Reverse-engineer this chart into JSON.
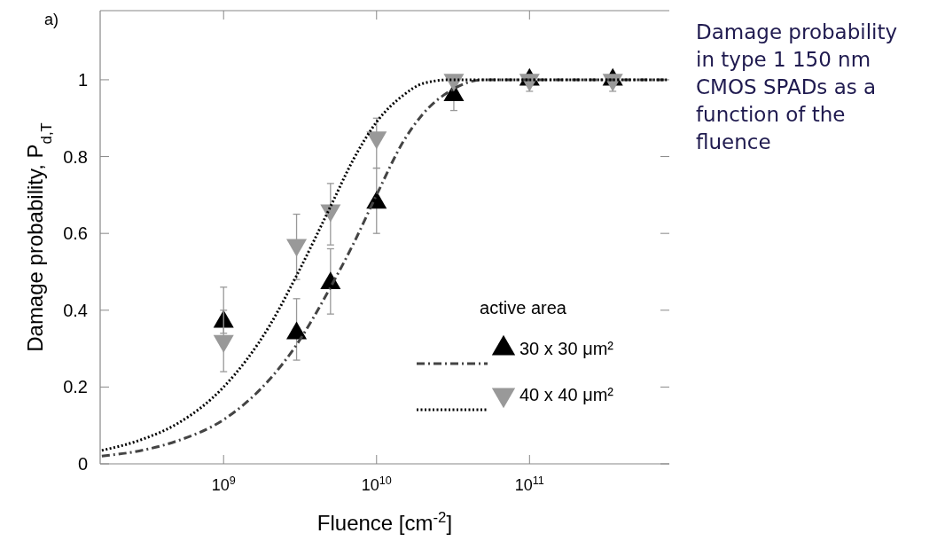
{
  "chart_data": {
    "type": "scatter",
    "title": "a)",
    "xlabel": "Fluence [cm$^{-2}$]",
    "ylabel": "Damage probability, P$_{d,T}$",
    "legend_title": "active area",
    "legend": "bottom right",
    "grid": false,
    "log": "x",
    "xlim": [
      156000000.0,
      820000000000.0
    ],
    "xticks": [
      {
        "value": 1000000000.0,
        "label": "10$^{9}$"
      },
      {
        "value": 10000000000.0,
        "label": "10$^{10}$"
      },
      {
        "value": 100000000000.0,
        "label": "10$^{11}$"
      }
    ],
    "ylim": [
      0,
      1.18
    ],
    "yticks": [
      0,
      0.2,
      0.4,
      0.6,
      0.8,
      1
    ],
    "series": [
      {
        "name": "30 x 30 μm²",
        "marker": "triangle",
        "color": "#000000",
        "x": [
          1000000000.0,
          3000000000.0,
          5000000000.0,
          10000000000.0,
          32000000000.0,
          100000000000.0,
          350000000000.0
        ],
        "values": [
          0.37,
          0.34,
          0.47,
          0.68,
          0.96,
          1.0,
          1.0
        ],
        "errors": [
          0.03,
          [
            0.27,
            0.43
          ],
          [
            0.39,
            0.56
          ],
          [
            0.6,
            0.77
          ],
          [
            0.92,
            1.0
          ],
          [
            0.97,
            1.0
          ],
          [
            0.97,
            1.0
          ]
        ]
      },
      {
        "name": "40 x 40 μm²",
        "marker": "triangle-down",
        "color": "#999999",
        "x": [
          1000000000.0,
          3000000000.0,
          5000000000.0,
          10000000000.0,
          32000000000.0,
          100000000000.0,
          350000000000.0
        ],
        "values": [
          0.32,
          0.57,
          0.66,
          0.85,
          1.0,
          1.0,
          1.0
        ],
        "errors": [
          [
            0.24,
            0.46
          ],
          [
            0.48,
            0.65
          ],
          [
            0.57,
            0.73
          ],
          [
            0.77,
            0.9
          ],
          null,
          null,
          null
        ]
      },
      {
        "type": "line",
        "line_style": "dashdot",
        "color": "#444444",
        "x": [
          160000000.0,
          300000000.0,
          500000000.0,
          1000000000.0,
          2000000000.0,
          3000000000.0,
          5000000000.0,
          7000000000.0,
          10000000000.0,
          15000000000.0,
          20000000000.0,
          30000000000.0,
          50000000000.0,
          100000000000.0,
          800000000000.0
        ],
        "values": [
          0.02,
          0.036,
          0.06,
          0.115,
          0.22,
          0.31,
          0.46,
          0.57,
          0.7,
          0.84,
          0.91,
          0.97,
          1.0,
          1.0,
          1.0
        ]
      },
      {
        "type": "line",
        "line_style": "dotted",
        "color": "#000000",
        "x": [
          160000000.0,
          300000000.0,
          500000000.0,
          1000000000.0,
          2000000000.0,
          3000000000.0,
          5000000000.0,
          7000000000.0,
          10000000000.0,
          15000000000.0,
          20000000000.0,
          30000000000.0,
          50000000000.0,
          100000000000.0,
          800000000000.0
        ],
        "values": [
          0.035,
          0.065,
          0.105,
          0.2,
          0.36,
          0.49,
          0.67,
          0.79,
          0.89,
          0.96,
          0.99,
          1.0,
          1.0,
          1.0,
          1.0
        ]
      }
    ],
    "annotations": [
      "Damage probability in type 1 150 nm CMOS SPADs as a function of the fluence"
    ]
  }
}
